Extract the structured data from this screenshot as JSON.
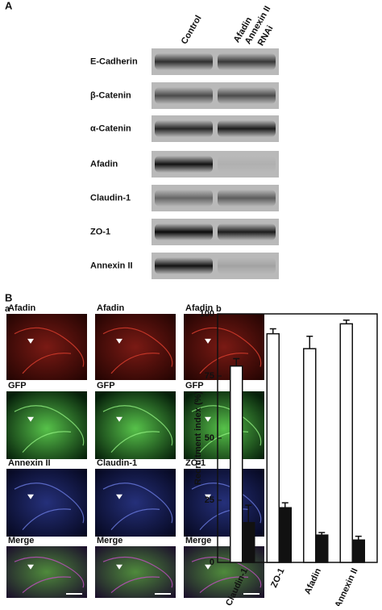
{
  "panel_a": {
    "label": "A",
    "control_header": "Control",
    "rnai_header": [
      "Afadin",
      "Annexin II",
      "RNAi"
    ],
    "rows": [
      "E-Cadherin",
      "β-Catenin",
      "α-Catenin",
      "Afadin",
      "Claudin-1",
      "ZO-1",
      "Annexin II"
    ]
  },
  "panel_b": {
    "label": "B",
    "sub_a": "a",
    "image_labels": [
      [
        "Afadin",
        "Afadin",
        "Afadin"
      ],
      [
        "GFP",
        "GFP",
        "GFP"
      ],
      [
        "Annexin II",
        "Claudin-1",
        "ZO-1"
      ],
      [
        "Merge",
        "Merge",
        "Merge"
      ]
    ]
  },
  "chart_data": {
    "type": "bar",
    "label": "b",
    "y_label": "Recruitment index (%)",
    "categories": [
      "Claudin-1",
      "ZO-1",
      "Afadin",
      "Annexin II"
    ],
    "series": [
      {
        "color": "#ffffff",
        "values": [
          79,
          92,
          86,
          96
        ],
        "errors": [
          3,
          2,
          5,
          1.5
        ]
      },
      {
        "color": "#111111",
        "values": [
          16,
          22,
          11,
          9
        ],
        "errors": [
          7,
          2,
          1,
          1.5
        ]
      }
    ],
    "ylim": [
      0,
      100
    ],
    "yticks": [
      0,
      25,
      50,
      75,
      100
    ]
  }
}
